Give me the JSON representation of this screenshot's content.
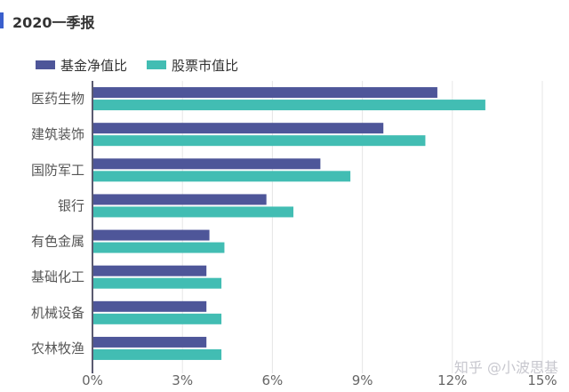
{
  "header": {
    "title": "2020一季报"
  },
  "watermark": "知乎 @小波思基",
  "colors": {
    "accent": "#3a5fcd",
    "fund": "#4e5699",
    "market": "#42bdb3"
  },
  "chart_data": {
    "type": "bar",
    "orientation": "horizontal",
    "categories": [
      "医药生物",
      "建筑装饰",
      "国防军工",
      "银行",
      "有色金属",
      "基础化工",
      "机械设备",
      "农林牧渔"
    ],
    "series": [
      {
        "name": "基金净值比",
        "color": "#4e5699",
        "values": [
          11.5,
          9.7,
          7.6,
          5.8,
          3.9,
          3.8,
          3.8,
          3.8
        ]
      },
      {
        "name": "股票市值比",
        "color": "#42bdb3",
        "values": [
          13.1,
          11.1,
          8.6,
          6.7,
          4.4,
          4.3,
          4.3,
          4.3
        ]
      }
    ],
    "x_ticks": [
      "0%",
      "3%",
      "6%",
      "9%",
      "12%",
      "15%"
    ],
    "xlim": [
      0,
      15
    ],
    "grid": true,
    "legend_position": "top-left"
  }
}
